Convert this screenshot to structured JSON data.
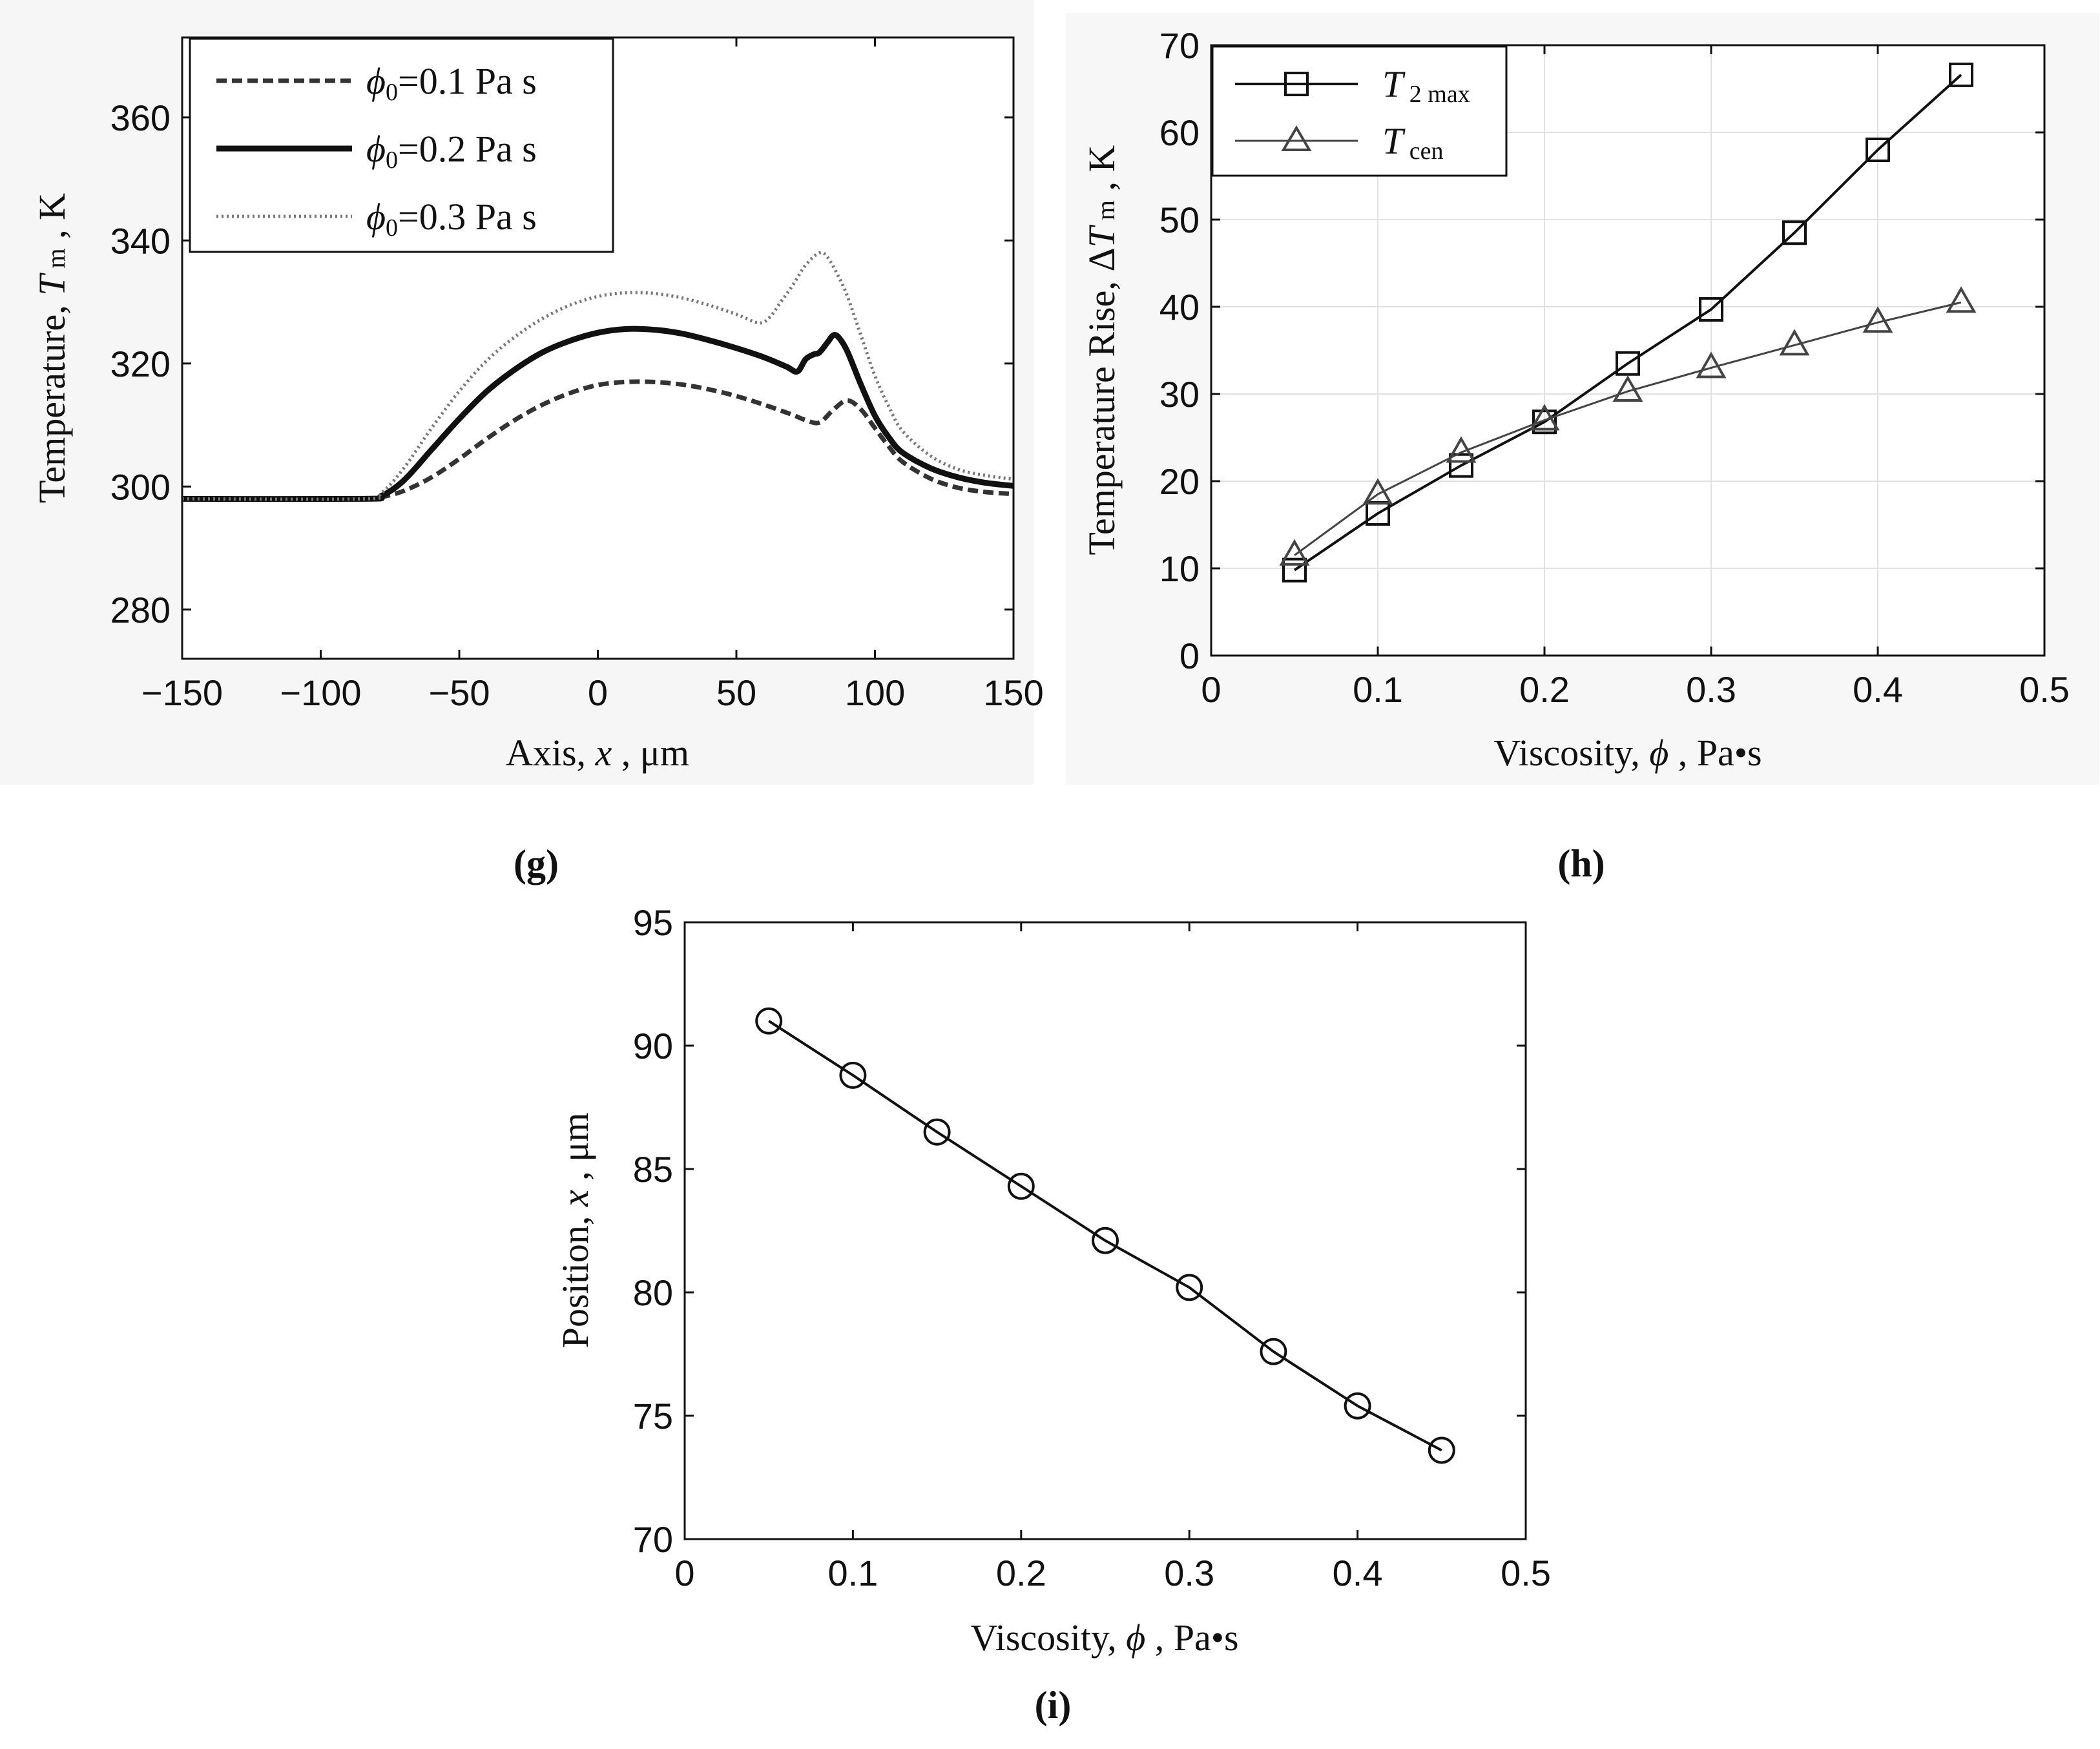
{
  "figure": {
    "panel_labels": {
      "g": "(g)",
      "h": "(h)",
      "i": "(i)"
    }
  },
  "chart_data": [
    {
      "id": "g",
      "type": "line",
      "xlabel": "Axis, x , μm",
      "xlabel_parts": [
        "Axis, ",
        "x",
        " , μm"
      ],
      "ylabel": "Temperature, T m , K",
      "ylabel_parts": [
        "Temperature, ",
        "T",
        " m",
        " , K"
      ],
      "xlim": [
        -150,
        150
      ],
      "ylim": [
        272,
        373
      ],
      "xticks": [
        -150,
        -100,
        -50,
        0,
        50,
        100,
        150
      ],
      "xtick_labels": [
        "−150",
        "−100",
        "−50",
        "0",
        "50",
        "100",
        "150"
      ],
      "yticks": [
        280,
        300,
        320,
        340,
        360
      ],
      "ytick_labels": [
        "280",
        "300",
        "320",
        "340",
        "360"
      ],
      "legend": {
        "position": "top-left",
        "entries": [
          {
            "symbol": "ϕ",
            "sub": "0",
            "text": "=0.1 Pa s"
          },
          {
            "symbol": "ϕ",
            "sub": "0",
            "text": "=0.2 Pa s"
          },
          {
            "symbol": "ϕ",
            "sub": "0",
            "text": "=0.3 Pa s"
          }
        ]
      },
      "series": [
        {
          "name": "ϕ0=0.1 Pa s",
          "style": "dashed",
          "color": "#333333",
          "x": [
            -150,
            -85,
            -78,
            -70,
            -60,
            -50,
            -40,
            -30,
            -20,
            -10,
            0,
            10,
            20,
            30,
            40,
            50,
            60,
            70,
            75,
            80,
            85,
            90,
            95,
            100,
            105,
            110,
            120,
            130,
            140,
            150
          ],
          "y": [
            298,
            298,
            298.3,
            299.3,
            301.5,
            304.5,
            307.8,
            310.8,
            313.3,
            315.2,
            316.5,
            317,
            317,
            316.6,
            315.8,
            314.7,
            313.3,
            311.7,
            310.8,
            310.4,
            312.5,
            314,
            312.5,
            309.5,
            306.5,
            304,
            301.3,
            299.8,
            299.1,
            298.8
          ]
        },
        {
          "name": "ϕ0=0.2 Pa s",
          "style": "solid",
          "color": "#111111",
          "x": [
            -150,
            -85,
            -78,
            -70,
            -60,
            -50,
            -40,
            -30,
            -20,
            -10,
            0,
            10,
            20,
            30,
            40,
            50,
            60,
            68,
            72,
            75,
            78,
            80,
            83,
            85,
            87,
            90,
            95,
            100,
            105,
            110,
            120,
            130,
            140,
            150
          ],
          "y": [
            298,
            298,
            298.5,
            301,
            306,
            311,
            315.5,
            319,
            321.8,
            323.7,
            325,
            325.6,
            325.5,
            324.9,
            323.8,
            322.5,
            321,
            319.5,
            318.7,
            320.7,
            321.5,
            321.8,
            323.5,
            324.6,
            324.2,
            322,
            316.5,
            311.5,
            308,
            305.5,
            303,
            301.5,
            300.6,
            300.1
          ]
        },
        {
          "name": "ϕ0=0.3 Pa s",
          "style": "dotted",
          "color": "#777777",
          "x": [
            -150,
            -85,
            -78,
            -70,
            -60,
            -50,
            -40,
            -30,
            -20,
            -10,
            0,
            10,
            20,
            30,
            40,
            50,
            58,
            62,
            66,
            70,
            75,
            80,
            83,
            87,
            90,
            95,
            100,
            105,
            110,
            120,
            130,
            140,
            150
          ],
          "y": [
            298,
            298,
            299,
            303,
            309.5,
            315.5,
            320.5,
            324.3,
            327.3,
            329.5,
            330.9,
            331.5,
            331.4,
            330.7,
            329.5,
            328,
            326.6,
            327.5,
            330,
            332.5,
            336,
            338,
            337.2,
            334,
            331,
            324.5,
            318,
            313,
            309,
            305,
            302.8,
            301.8,
            301.2
          ]
        }
      ]
    },
    {
      "id": "h",
      "type": "line",
      "xlabel": "Viscosity, ϕ , Pa•s",
      "xlabel_parts": [
        "Viscosity, ",
        "ϕ",
        " , Pa•s"
      ],
      "ylabel": "Temperature Rise, ΔT m , K",
      "ylabel_parts": [
        "Temperature Rise, Δ",
        "T",
        " m",
        " , K"
      ],
      "xlim": [
        0,
        0.5
      ],
      "ylim": [
        0,
        70
      ],
      "grid": true,
      "xticks": [
        0,
        0.1,
        0.2,
        0.3,
        0.4,
        0.5
      ],
      "xtick_labels": [
        "0",
        "0.1",
        "0.2",
        "0.3",
        "0.4",
        "0.5"
      ],
      "yticks": [
        0,
        10,
        20,
        30,
        40,
        50,
        60,
        70
      ],
      "ytick_labels": [
        "0",
        "10",
        "20",
        "30",
        "40",
        "50",
        "60",
        "70"
      ],
      "legend": {
        "position": "top-left",
        "entries": [
          {
            "symbol": "T",
            "sub": " 2 max"
          },
          {
            "symbol": "T",
            "sub": " cen"
          }
        ]
      },
      "series": [
        {
          "name": "T 2 max",
          "marker": "square",
          "color": "#111111",
          "x": [
            0.05,
            0.1,
            0.15,
            0.2,
            0.25,
            0.3,
            0.35,
            0.4,
            0.45
          ],
          "y": [
            9.8,
            16.3,
            21.8,
            26.8,
            33.5,
            39.7,
            48.5,
            58,
            66.6
          ]
        },
        {
          "name": "T cen",
          "marker": "triangle",
          "color": "#444444",
          "x": [
            0.05,
            0.1,
            0.15,
            0.2,
            0.25,
            0.3,
            0.35,
            0.4,
            0.45
          ],
          "y": [
            11.5,
            18.5,
            23.3,
            27,
            30.3,
            33,
            35.6,
            38.2,
            40.5
          ]
        }
      ]
    },
    {
      "id": "i",
      "type": "line",
      "xlabel": "Viscosity, ϕ , Pa•s",
      "xlabel_parts": [
        "Viscosity, ",
        "ϕ",
        " , Pa•s"
      ],
      "ylabel": "Position, x , μm",
      "ylabel_parts": [
        "Position, ",
        "x",
        " , μm"
      ],
      "xlim": [
        0,
        0.5
      ],
      "ylim": [
        70,
        95
      ],
      "xticks": [
        0,
        0.1,
        0.2,
        0.3,
        0.4,
        0.5
      ],
      "xtick_labels": [
        "0",
        "0.1",
        "0.2",
        "0.3",
        "0.4",
        "0.5"
      ],
      "yticks": [
        70,
        75,
        80,
        85,
        90,
        95
      ],
      "ytick_labels": [
        "70",
        "75",
        "80",
        "85",
        "90",
        "95"
      ],
      "series": [
        {
          "name": "position",
          "marker": "circle",
          "color": "#111111",
          "x": [
            0.05,
            0.1,
            0.15,
            0.2,
            0.25,
            0.3,
            0.35,
            0.4,
            0.45
          ],
          "y": [
            91,
            88.8,
            86.5,
            84.3,
            82.1,
            80.2,
            77.6,
            75.4,
            73.6
          ]
        }
      ]
    }
  ]
}
